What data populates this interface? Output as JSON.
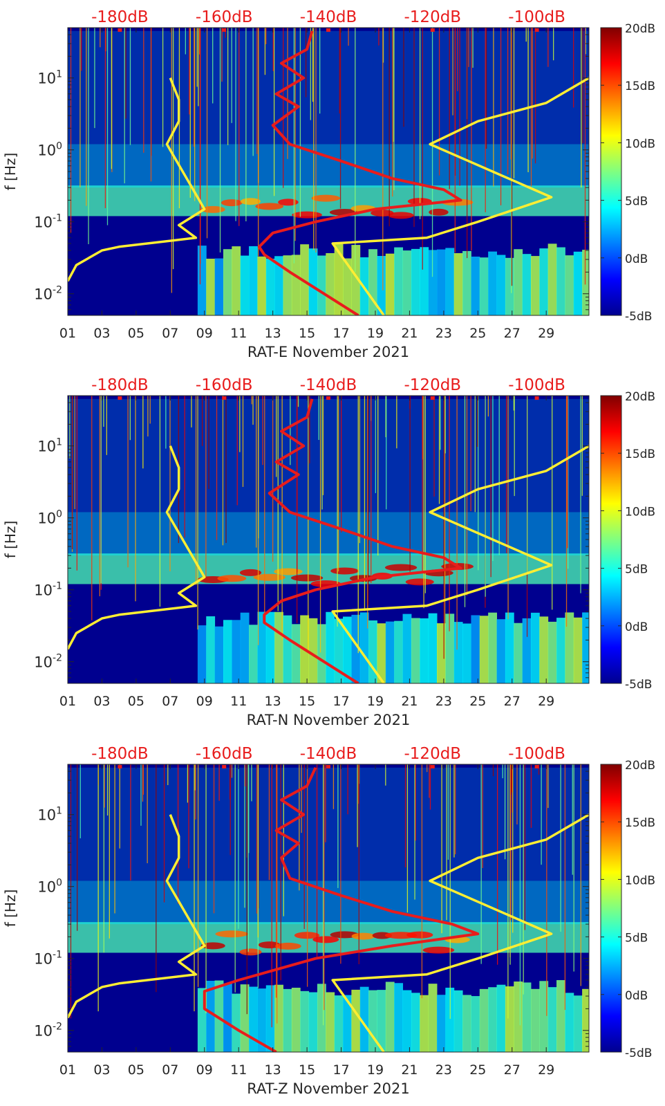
{
  "figure": {
    "colormap": [
      "#00008f",
      "#0000ff",
      "#0080ff",
      "#00ffff",
      "#80ff80",
      "#ffff00",
      "#ff8000",
      "#ff0000",
      "#800000"
    ],
    "background_color": "#00008f",
    "psd_curve_color": "#e81c1c",
    "noise_model_color": "#ffee33",
    "top_label_color": "#e81c1c"
  },
  "chart_data": [
    {
      "type": "heatmap",
      "title": "",
      "xlabel": "RAT-E November 2021",
      "ylabel": "f [Hz]",
      "xlim": [
        1,
        31.5
      ],
      "ylim": [
        0.005,
        50
      ],
      "yscale": "log",
      "x_tick_labels": [
        "01",
        "03",
        "05",
        "07",
        "09",
        "11",
        "13",
        "15",
        "17",
        "19",
        "21",
        "23",
        "25",
        "27",
        "29"
      ],
      "y_tick_labels": [
        "10^1",
        "10^0",
        "10^-1",
        "10^-2"
      ],
      "top_axis": {
        "label_range_dB": [
          -190,
          -90
        ],
        "labels": [
          "-180dB",
          "-160dB",
          "-140dB",
          "-120dB",
          "-100dB"
        ]
      },
      "colorbar": {
        "range_dB": [
          -5,
          20
        ],
        "labels": [
          "20dB",
          "15dB",
          "10dB",
          "5dB",
          "0dB",
          "-5dB"
        ]
      },
      "noise_model_low": {
        "x": [
          1.0,
          1.5,
          3.0,
          4.0,
          8.5,
          7.5,
          9.0,
          6.8,
          7.5,
          7.5,
          7.0
        ],
        "y": [
          0.015,
          0.025,
          0.04,
          0.045,
          0.06,
          0.09,
          0.15,
          1.2,
          2.5,
          5,
          10
        ]
      },
      "noise_model_high": {
        "x": [
          19.5,
          16.5,
          22.0,
          25.0,
          29.3,
          22.2,
          25.0,
          29.0,
          31.5
        ],
        "y": [
          0.005,
          0.05,
          0.06,
          0.1,
          0.22,
          1.2,
          2.5,
          4.5,
          10
        ]
      },
      "psd_curve": {
        "x": [
          18.0,
          16.0,
          14.0,
          12.5,
          12.2,
          13.0,
          15.5,
          19.0,
          24.0,
          23.0,
          20.0,
          17.0,
          14.0,
          13.0,
          14.5,
          13.2,
          14.8,
          13.5,
          15.0,
          15.3
        ],
        "y": [
          0.005,
          0.01,
          0.02,
          0.035,
          0.045,
          0.07,
          0.1,
          0.15,
          0.2,
          0.28,
          0.4,
          0.7,
          1.2,
          2.2,
          4,
          6,
          10,
          16,
          25,
          45
        ]
      }
    },
    {
      "type": "heatmap",
      "title": "",
      "xlabel": "RAT-N November 2021",
      "ylabel": "f [Hz]",
      "xlim": [
        1,
        31.5
      ],
      "ylim": [
        0.005,
        50
      ],
      "yscale": "log",
      "x_tick_labels": [
        "01",
        "03",
        "05",
        "07",
        "09",
        "11",
        "13",
        "15",
        "17",
        "19",
        "21",
        "23",
        "25",
        "27",
        "29"
      ],
      "y_tick_labels": [
        "10^1",
        "10^0",
        "10^-1",
        "10^-2"
      ],
      "top_axis": {
        "label_range_dB": [
          -190,
          -90
        ],
        "labels": [
          "-180dB",
          "-160dB",
          "-140dB",
          "-120dB",
          "-100dB"
        ]
      },
      "colorbar": {
        "range_dB": [
          -5,
          20
        ],
        "labels": [
          "20dB",
          "15dB",
          "10dB",
          "5dB",
          "0dB",
          "-5dB"
        ]
      },
      "noise_model_low": {
        "x": [
          1.0,
          1.5,
          3.0,
          4.0,
          8.5,
          7.5,
          9.0,
          6.8,
          7.5,
          7.5,
          7.0
        ],
        "y": [
          0.015,
          0.025,
          0.04,
          0.045,
          0.06,
          0.09,
          0.15,
          1.2,
          2.5,
          5,
          10
        ]
      },
      "noise_model_high": {
        "x": [
          19.5,
          16.5,
          22.0,
          25.0,
          29.3,
          22.2,
          25.0,
          29.0,
          31.5
        ],
        "y": [
          0.005,
          0.05,
          0.06,
          0.1,
          0.22,
          1.2,
          2.5,
          4.5,
          10
        ]
      },
      "psd_curve": {
        "x": [
          18.0,
          16.0,
          14.0,
          12.5,
          12.5,
          13.5,
          15.5,
          19.0,
          24.0,
          23.0,
          20.0,
          17.0,
          14.0,
          12.8,
          14.5,
          13.2,
          14.8,
          13.5,
          15.0,
          15.3
        ],
        "y": [
          0.005,
          0.01,
          0.02,
          0.035,
          0.045,
          0.07,
          0.1,
          0.15,
          0.2,
          0.28,
          0.4,
          0.7,
          1.2,
          2.2,
          4,
          6,
          10,
          16,
          25,
          45
        ]
      }
    },
    {
      "type": "heatmap",
      "title": "",
      "xlabel": "RAT-Z November 2021",
      "ylabel": "f [Hz]",
      "xlim": [
        1,
        31.5
      ],
      "ylim": [
        0.005,
        50
      ],
      "yscale": "log",
      "x_tick_labels": [
        "01",
        "03",
        "05",
        "07",
        "09",
        "11",
        "13",
        "15",
        "17",
        "19",
        "21",
        "23",
        "25",
        "27",
        "29"
      ],
      "y_tick_labels": [
        "10^1",
        "10^0",
        "10^-1",
        "10^-2"
      ],
      "top_axis": {
        "label_range_dB": [
          -190,
          -90
        ],
        "labels": [
          "-180dB",
          "-160dB",
          "-140dB",
          "-120dB",
          "-100dB"
        ]
      },
      "colorbar": {
        "range_dB": [
          -5,
          20
        ],
        "labels": [
          "20dB",
          "15dB",
          "10dB",
          "5dB",
          "0dB",
          "-5dB"
        ]
      },
      "noise_model_low": {
        "x": [
          1.0,
          1.5,
          3.0,
          4.0,
          8.5,
          7.5,
          9.0,
          6.8,
          7.5,
          7.5,
          7.0
        ],
        "y": [
          0.015,
          0.025,
          0.04,
          0.045,
          0.06,
          0.09,
          0.15,
          1.2,
          2.5,
          5,
          10
        ]
      },
      "noise_model_high": {
        "x": [
          19.5,
          16.5,
          22.0,
          25.0,
          29.3,
          22.2,
          25.0,
          29.0,
          31.5
        ],
        "y": [
          0.005,
          0.05,
          0.06,
          0.1,
          0.22,
          1.2,
          2.5,
          4.5,
          10
        ]
      },
      "psd_curve": {
        "x": [
          13.2,
          11.0,
          9.0,
          9.0,
          11.0,
          15.5,
          20.0,
          25.0,
          23.5,
          20.0,
          17.0,
          14.0,
          13.5,
          14.5,
          13.2,
          14.8,
          13.5,
          15.0,
          15.5
        ],
        "y": [
          0.005,
          0.01,
          0.02,
          0.035,
          0.05,
          0.1,
          0.15,
          0.22,
          0.3,
          0.45,
          0.75,
          1.3,
          2.5,
          4,
          6,
          10,
          16,
          25,
          45
        ]
      }
    }
  ]
}
